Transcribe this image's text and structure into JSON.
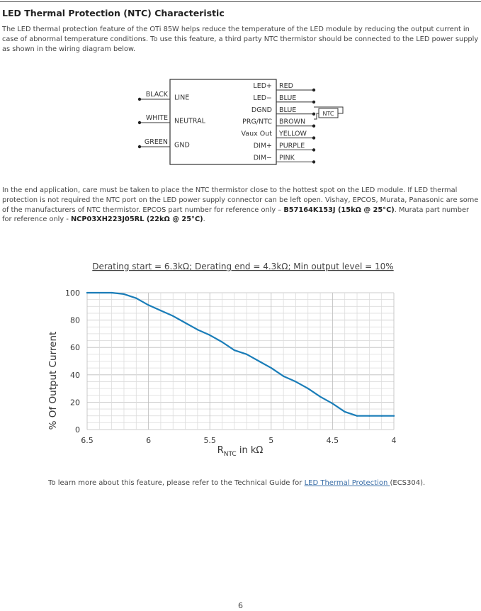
{
  "section": {
    "title": "LED Thermal Protection (NTC) Characteristic",
    "intro": "The LED thermal protection feature of the OTi 85W helps reduce the temperature of the LED module by reducing the output current in case of abnormal temperature conditions. To use this feature, a third party NTC thermistor should be connected to the LED power supply as shown in the wiring diagram below."
  },
  "wiring": {
    "inputs": [
      {
        "wire": "BLACK",
        "terminal": "LINE"
      },
      {
        "wire": "WHITE",
        "terminal": "NEUTRAL"
      },
      {
        "wire": "GREEN",
        "terminal": "GND"
      }
    ],
    "outputs": [
      {
        "terminal": "LED+",
        "wire": "RED"
      },
      {
        "terminal": "LED−",
        "wire": "BLUE"
      },
      {
        "terminal": "DGND",
        "wire": "BLUE"
      },
      {
        "terminal": "PRG/NTC",
        "wire": "BROWN"
      },
      {
        "terminal": "Vaux Out",
        "wire": "YELLOW"
      },
      {
        "terminal": "DIM+",
        "wire": "PURPLE"
      },
      {
        "terminal": "DIM−",
        "wire": "PINK"
      }
    ],
    "ntc_label": "NTC"
  },
  "application_note": {
    "text": "In the end application, care must be taken to place the NTC thermistor close to the hottest spot on the LED module. If LED thermal protection is not required the NTC port on the LED power supply connector can be left open. Vishay, EPCOS, Murata, Panasonic are some of the manufacturers of NTC thermistor. EPCOS part number for reference only – ",
    "epcos_part": "B57164K153J (15kΩ @ 25°C)",
    "middle": ". Murata part number for reference only - ",
    "murata_part": "NCP03XH223J05RL (22kΩ @ 25°C)",
    "end": "."
  },
  "chart_data": {
    "type": "line",
    "title": "Derating start = 6.3kΩ; Derating end = 4.3kΩ; Min output level = 10%",
    "xlabel_main": "R",
    "xlabel_sub": "NTC",
    "xlabel_tail": " in kΩ",
    "ylabel": "% Of Output Current",
    "xlim": [
      6.5,
      4
    ],
    "ylim": [
      0,
      100
    ],
    "x_reversed": true,
    "x_ticks": [
      6.5,
      6,
      5.5,
      5,
      4.5,
      4
    ],
    "x_tick_labels": [
      "6.5",
      "6",
      "5.5",
      "5",
      "4.5",
      "4"
    ],
    "y_ticks": [
      0,
      20,
      40,
      60,
      80,
      100
    ],
    "grid": true,
    "series": [
      {
        "color": "#1a7db8",
        "x": [
          6.5,
          6.3,
          6.2,
          6.1,
          6.0,
          5.9,
          5.8,
          5.7,
          5.6,
          5.5,
          5.4,
          5.3,
          5.2,
          5.1,
          5.0,
          4.9,
          4.8,
          4.7,
          4.6,
          4.5,
          4.4,
          4.3,
          4.2,
          4.1,
          4.0
        ],
        "y": [
          100,
          100,
          99,
          96,
          91,
          87,
          83,
          78,
          73,
          69,
          64,
          58,
          55,
          50,
          45,
          39,
          35,
          30,
          24,
          19,
          13,
          10,
          10,
          10,
          10
        ]
      }
    ]
  },
  "footer": {
    "prefix": "To learn more about this feature, please refer to the Technical Guide for ",
    "link": "LED Thermal Protection ",
    "suffix": "(ECS304)."
  },
  "page_number": "6"
}
